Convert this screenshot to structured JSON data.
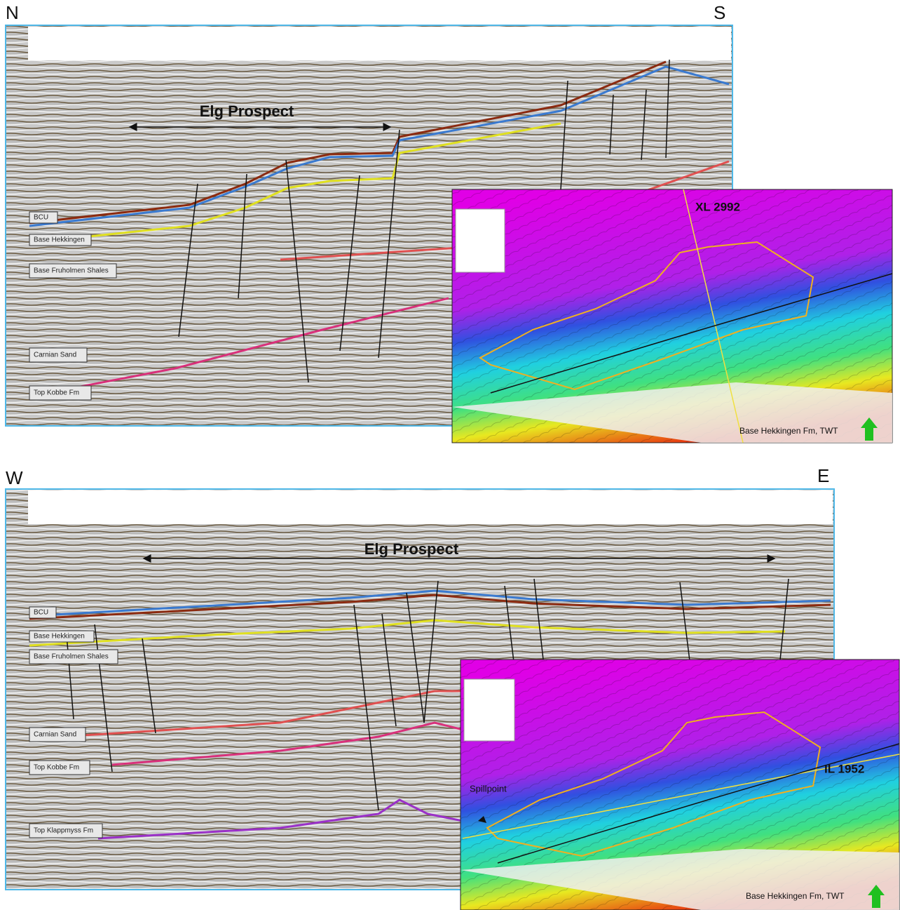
{
  "panels": [
    {
      "orientation": {
        "left": "N",
        "right": "S"
      },
      "title": "Elg Prospect",
      "horizon_labels": [
        "BCU",
        "Base Hekkingen",
        "Base Fruholmen Shales",
        "Carnian Sand",
        "Top Kobbe Fm"
      ],
      "map": {
        "line_label": "XL 2992",
        "caption": "Base Hekkingen Fm, TWT"
      }
    },
    {
      "orientation": {
        "left": "W",
        "right": "E"
      },
      "title": "Elg Prospect",
      "horizon_labels": [
        "BCU",
        "Base Hekkingen",
        "Base Fruholmen Shales",
        "Carnian Sand",
        "Top Kobbe Fm",
        "Top Klappmyss Fm"
      ],
      "map": {
        "line_label": "IL 1952",
        "annotation": "Spillpoint",
        "caption": "Base Hekkingen Fm, TWT"
      }
    }
  ]
}
